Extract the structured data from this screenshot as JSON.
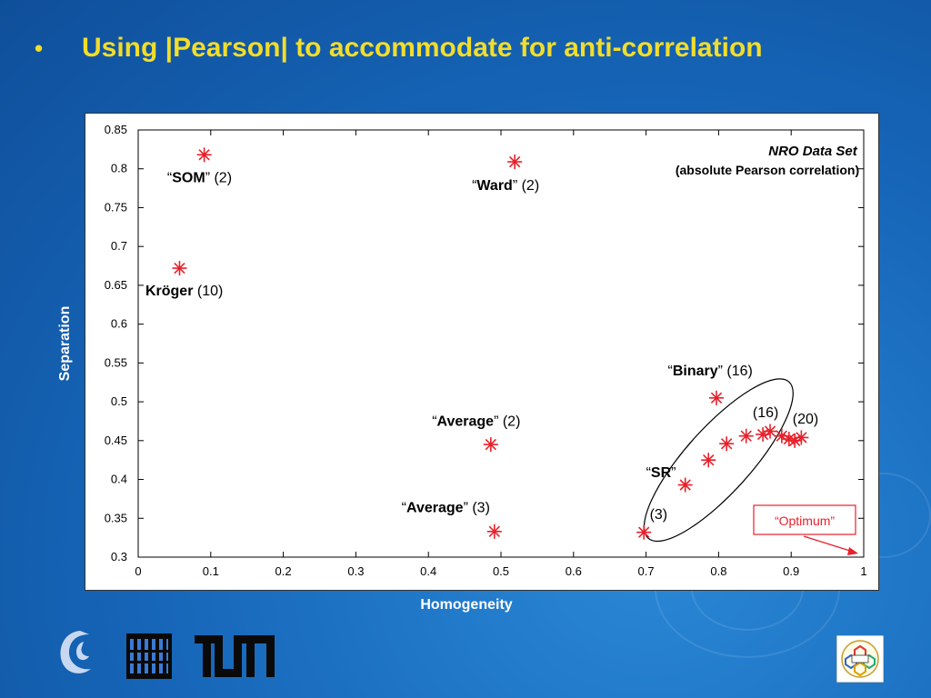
{
  "slide": {
    "bullet": "•",
    "title": "Using |Pearson| to accommodate for anti-correlation"
  },
  "chart_data": {
    "type": "scatter",
    "title": "NRO Data Set",
    "subtitle": "(absolute Pearson correlation)",
    "xlabel": "Homogeneity",
    "ylabel": "Separation",
    "xlim": [
      0,
      1
    ],
    "ylim": [
      0.3,
      0.85
    ],
    "xticks": [
      "0",
      "0.1",
      "0.2",
      "0.3",
      "0.4",
      "0.5",
      "0.6",
      "0.7",
      "0.8",
      "0.9",
      "1"
    ],
    "yticks": [
      "0.3",
      "0.35",
      "0.4",
      "0.45",
      "0.5",
      "0.55",
      "0.6",
      "0.65",
      "0.7",
      "0.75",
      "0.8",
      "0.85"
    ],
    "grid": false,
    "marker_color": "#e8202a",
    "points": [
      {
        "x": 0.091,
        "y": 0.818
      },
      {
        "x": 0.519,
        "y": 0.809
      },
      {
        "x": 0.057,
        "y": 0.672
      },
      {
        "x": 0.486,
        "y": 0.445
      },
      {
        "x": 0.491,
        "y": 0.333
      },
      {
        "x": 0.697,
        "y": 0.332
      },
      {
        "x": 0.754,
        "y": 0.393
      },
      {
        "x": 0.786,
        "y": 0.425
      },
      {
        "x": 0.797,
        "y": 0.505
      },
      {
        "x": 0.811,
        "y": 0.446
      },
      {
        "x": 0.838,
        "y": 0.456
      },
      {
        "x": 0.861,
        "y": 0.458
      },
      {
        "x": 0.871,
        "y": 0.462
      },
      {
        "x": 0.887,
        "y": 0.456
      },
      {
        "x": 0.897,
        "y": 0.452
      },
      {
        "x": 0.905,
        "y": 0.45
      },
      {
        "x": 0.914,
        "y": 0.454
      }
    ],
    "annotations": [
      {
        "q1": "“",
        "bold": "SOM",
        "q2": "”",
        "rest": " (2)",
        "x": 0.04,
        "y": 0.783
      },
      {
        "q1": "“",
        "bold": "Ward",
        "q2": "”",
        "rest": " (2)",
        "x": 0.46,
        "y": 0.773
      },
      {
        "q1": "",
        "bold": "Kröger",
        "q2": "",
        "rest": " (10)",
        "x": 0.01,
        "y": 0.637
      },
      {
        "q1": "“",
        "bold": "Binary",
        "q2": "”",
        "rest": " (16)",
        "x": 0.73,
        "y": 0.534
      },
      {
        "q1": "“",
        "bold": "Average",
        "q2": "”",
        "rest": " (2)",
        "x": 0.405,
        "y": 0.469
      },
      {
        "q1": "“",
        "bold": "SR",
        "q2": "”",
        "rest": "",
        "x": 0.7,
        "y": 0.403
      },
      {
        "q1": "“",
        "bold": "Average",
        "q2": "”",
        "rest": " (3)",
        "x": 0.363,
        "y": 0.358
      },
      {
        "q1": "",
        "bold": "",
        "q2": "",
        "rest": "(16)",
        "x": 0.847,
        "y": 0.48
      },
      {
        "q1": "",
        "bold": "",
        "q2": "",
        "rest": "(20)",
        "x": 0.902,
        "y": 0.472
      },
      {
        "q1": "",
        "bold": "",
        "q2": "",
        "rest": "(3)",
        "x": 0.705,
        "y": 0.349
      }
    ],
    "optimum_label": "“Optimum”",
    "cluster_ellipse": {
      "cx": 0.8,
      "cy": 0.425,
      "rx": 0.145,
      "ry": 0.045,
      "angle": -48
    }
  }
}
